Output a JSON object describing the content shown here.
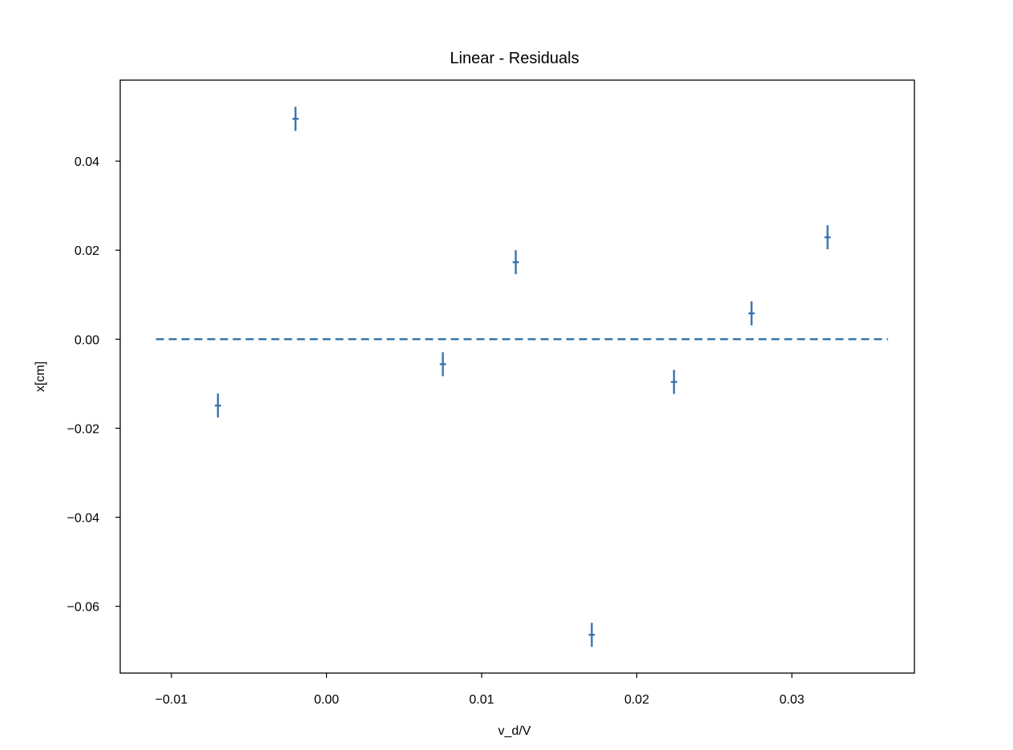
{
  "chart_data": {
    "type": "scatter",
    "title": "Linear - Residuals",
    "xlabel": "v_d/V",
    "ylabel": "x[cm]",
    "xlim": [
      -0.0133,
      0.0379
    ],
    "ylim": [
      -0.075,
      0.0582
    ],
    "grid": false,
    "legend": "none",
    "x_ticks": [
      -0.01,
      0.0,
      0.01,
      0.02,
      0.03
    ],
    "x_tick_labels": [
      "−0.01",
      "0.00",
      "0.01",
      "0.02",
      "0.03"
    ],
    "y_ticks": [
      -0.06,
      -0.04,
      -0.02,
      0.0,
      0.02,
      0.04
    ],
    "y_tick_labels": [
      "−0.06",
      "−0.04",
      "−0.02",
      "0.00",
      "0.02",
      "0.04"
    ],
    "series": [
      {
        "marker_color": "#3a72b0",
        "points": [
          {
            "x": -0.007,
            "y": -0.0149,
            "yerr": 0.0027,
            "xerr": 0.0002
          },
          {
            "x": -0.002,
            "y": 0.0495,
            "yerr": 0.0027,
            "xerr": 0.0002
          },
          {
            "x": 0.0075,
            "y": -0.0056,
            "yerr": 0.0027,
            "xerr": 0.0002
          },
          {
            "x": 0.0122,
            "y": 0.0173,
            "yerr": 0.0027,
            "xerr": 0.0002
          },
          {
            "x": 0.0171,
            "y": -0.0664,
            "yerr": 0.0027,
            "xerr": 0.0002
          },
          {
            "x": 0.0224,
            "y": -0.0096,
            "yerr": 0.0027,
            "xerr": 0.0002
          },
          {
            "x": 0.0274,
            "y": 0.0058,
            "yerr": 0.0027,
            "xerr": 0.0002
          },
          {
            "x": 0.0323,
            "y": 0.0229,
            "yerr": 0.0027,
            "xerr": 0.0002
          }
        ]
      }
    ],
    "reference_line": {
      "style": "dashed",
      "color": "#2f6fa6",
      "y": 0.0,
      "x_start": -0.011,
      "x_end": 0.0362
    }
  }
}
